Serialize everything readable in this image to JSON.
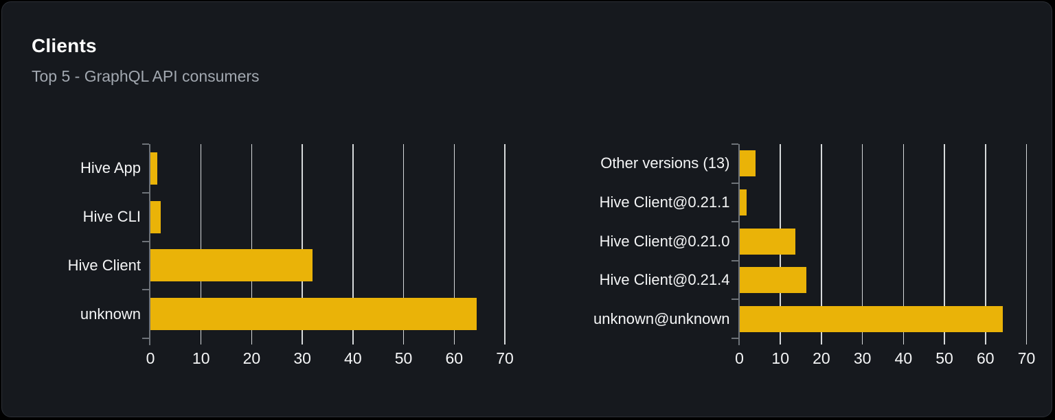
{
  "card": {
    "title": "Clients",
    "subtitle": "Top 5 - GraphQL API consumers"
  },
  "colors": {
    "bar": "#EAB308",
    "page_bg": "#000000",
    "card_bg": "#16191E",
    "card_border": "#2B2F36",
    "grid_line": "#E8EAED",
    "axis_line": "#6E7379",
    "text_primary": "#F4F5F6",
    "text_subtitle": "#A2A8B0"
  },
  "chart_data": [
    {
      "type": "bar",
      "orientation": "horizontal",
      "title": "",
      "categories": [
        "Hive App",
        "Hive CLI",
        "Hive Client",
        "unknown"
      ],
      "values": [
        1.4,
        2,
        32,
        64.5
      ],
      "xlabel": "",
      "ylabel": "",
      "xlim": [
        0,
        70
      ],
      "xticks": [
        0,
        10,
        20,
        30,
        40,
        50,
        60,
        70
      ],
      "grid": true,
      "legend": false
    },
    {
      "type": "bar",
      "orientation": "horizontal",
      "title": "",
      "categories": [
        "Other versions (13)",
        "Hive Client@0.21.1",
        "Hive Client@0.21.0",
        "Hive Client@0.21.4",
        "unknown@unknown"
      ],
      "values": [
        4,
        1.8,
        13.7,
        16.4,
        64.3
      ],
      "xlabel": "",
      "ylabel": "",
      "xlim": [
        0,
        70
      ],
      "xticks": [
        0,
        10,
        20,
        30,
        40,
        50,
        60,
        70
      ],
      "grid": true,
      "legend": false
    }
  ]
}
